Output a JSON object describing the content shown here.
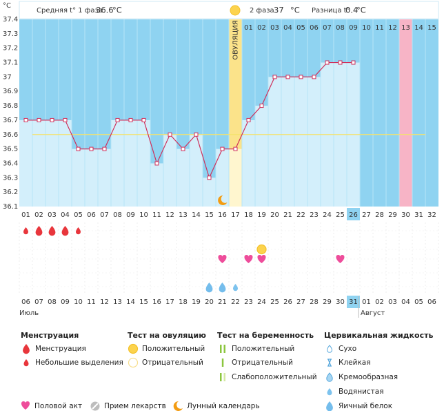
{
  "chart_data": {
    "type": "line",
    "unit": "°C",
    "phase1_label": "Средняя t° 1 фаза",
    "phase1_avg": 36.6,
    "phase2_label": "2 фаза",
    "phase2_avg": 37.0,
    "diff_label": "Разница t°",
    "diff": 0.4,
    "ovulation_label": "ОВУЛЯЦИЯ",
    "ovulation_day": "17",
    "today": "26",
    "highlight_day": "30",
    "categories": [
      "01",
      "02",
      "03",
      "04",
      "05",
      "06",
      "07",
      "08",
      "09",
      "10",
      "11",
      "12",
      "13",
      "14",
      "15",
      "16",
      "17",
      "18",
      "19",
      "20",
      "21",
      "22",
      "23",
      "24",
      "25",
      "26",
      "27",
      "28",
      "29",
      "30",
      "31",
      "32"
    ],
    "luteal_days": [
      null,
      null,
      null,
      null,
      null,
      null,
      null,
      null,
      null,
      null,
      null,
      null,
      null,
      null,
      null,
      null,
      null,
      "01",
      "02",
      "03",
      "04",
      "05",
      "06",
      "07",
      "08",
      "09",
      "10",
      "11",
      "12",
      "13",
      "14",
      "15"
    ],
    "values": [
      36.7,
      36.7,
      36.7,
      36.7,
      36.5,
      36.5,
      36.5,
      36.7,
      36.7,
      36.7,
      36.4,
      36.6,
      36.5,
      36.6,
      36.3,
      36.5,
      36.5,
      36.7,
      36.8,
      37.0,
      37.0,
      37.0,
      37.0,
      37.1,
      37.1,
      37.1,
      null,
      null,
      null,
      null,
      null,
      null
    ],
    "ylim": [
      36.1,
      37.4
    ],
    "yticks": [
      36.1,
      36.2,
      36.3,
      36.4,
      36.5,
      36.6,
      36.7,
      36.8,
      36.9,
      37,
      37.1,
      37.2,
      37.3,
      37.4
    ],
    "dates": [
      "06",
      "07",
      "08",
      "09",
      "10",
      "11",
      "12",
      "13",
      "14",
      "15",
      "16",
      "17",
      "18",
      "19",
      "20",
      "21",
      "22",
      "23",
      "24",
      "25",
      "26",
      "27",
      "28",
      "29",
      "30",
      "31",
      "01",
      "02",
      "03",
      "04",
      "05",
      "06"
    ],
    "weekends": [
      "11",
      "12",
      "18",
      "19",
      "25",
      "26",
      "01",
      "02"
    ],
    "months": [
      "Июль",
      "Август"
    ],
    "menstruation": [
      {
        "day": "01",
        "kind": "Небольшие выделения"
      },
      {
        "day": "02",
        "kind": "Менструация"
      },
      {
        "day": "03",
        "kind": "Менструация"
      },
      {
        "day": "04",
        "kind": "Менструация"
      },
      {
        "day": "05",
        "kind": "Небольшие выделения"
      }
    ],
    "ovulation_tests": [
      {
        "day": "19",
        "kind": "Положительный"
      }
    ],
    "sex_days": [
      "16",
      "18",
      "19",
      "25"
    ],
    "fluid": [
      {
        "day": "15",
        "kind": "Яичный белок"
      },
      {
        "day": "16",
        "kind": "Яичный белок"
      },
      {
        "day": "17",
        "kind": "Водянистая"
      }
    ],
    "moon_days": [
      "16"
    ]
  },
  "legend": {
    "groups": [
      {
        "title": "Менструация",
        "items": [
          "Менструация",
          "Небольшие выделения"
        ]
      },
      {
        "title": "Тест на овуляцию",
        "items": [
          "Положительный",
          "Отрицательный"
        ]
      },
      {
        "title": "Тест на беременность",
        "items": [
          "Положительный",
          "Отрицательный",
          "Слабоположительный"
        ]
      },
      {
        "title": "Цервикальная жидкость",
        "items": [
          "Сухо",
          "Клейкая",
          "Кремообразная",
          "Водянистая",
          "Яичный белок"
        ]
      }
    ],
    "extra": [
      "Половой акт",
      "Прием лекарств",
      "Лунный календарь"
    ]
  }
}
